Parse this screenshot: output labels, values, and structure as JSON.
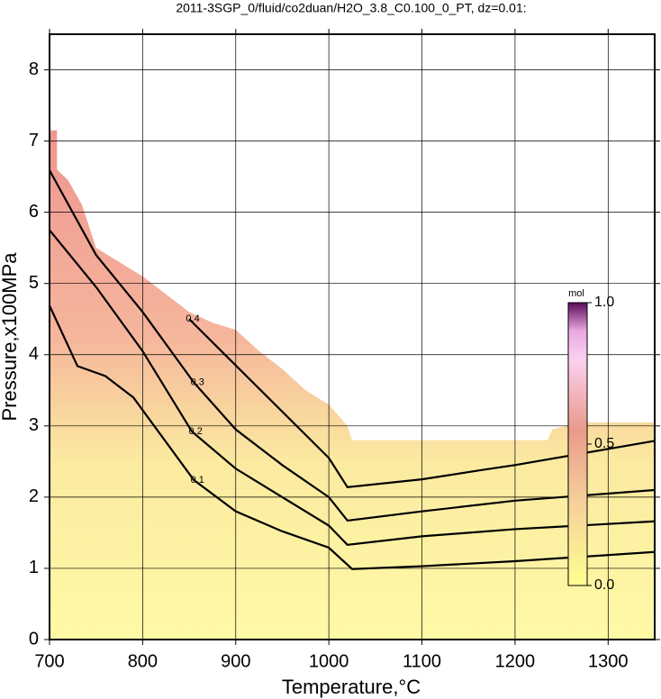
{
  "chart_data": {
    "type": "contour",
    "title": "2011-3SGP_0/fluid/co2duan/H2O_3.8_C0.100_0_PT, dz=0.01:",
    "xlabel": "Temperature,°C",
    "ylabel": "Pressure,x100MPa",
    "xlim": [
      700,
      1350
    ],
    "ylim": [
      0,
      8.5
    ],
    "xticks": [
      700,
      800,
      900,
      1000,
      1100,
      1200,
      1300
    ],
    "yticks": [
      0,
      1,
      2,
      3,
      4,
      5,
      6,
      7,
      8
    ],
    "grid": true,
    "boundary": {
      "x": [
        700,
        708,
        708,
        720,
        735,
        750,
        775,
        800,
        825,
        850,
        875,
        900,
        925,
        950,
        975,
        1000,
        1020,
        1025,
        1235,
        1240,
        1270,
        1350
      ],
      "y": [
        7.15,
        7.15,
        6.6,
        6.45,
        6.1,
        5.5,
        5.3,
        5.1,
        4.85,
        4.6,
        4.45,
        4.35,
        4.05,
        3.8,
        3.5,
        3.3,
        3.0,
        2.8,
        2.8,
        2.95,
        3.05,
        3.05
      ]
    },
    "contours": [
      {
        "level": 0.1,
        "x": [
          700,
          730,
          760,
          790,
          855,
          900,
          950,
          1000,
          1025,
          1100,
          1200,
          1350
        ],
        "y": [
          4.69,
          3.84,
          3.7,
          3.4,
          2.24,
          1.8,
          1.52,
          1.29,
          0.99,
          1.03,
          1.1,
          1.23
        ]
      },
      {
        "level": 0.2,
        "x": [
          700,
          750,
          800,
          853,
          900,
          950,
          1000,
          1020,
          1100,
          1200,
          1350
        ],
        "y": [
          5.75,
          4.95,
          4.05,
          2.92,
          2.4,
          2.0,
          1.6,
          1.33,
          1.45,
          1.55,
          1.66
        ]
      },
      {
        "level": 0.3,
        "x": [
          700,
          750,
          800,
          855,
          900,
          950,
          1000,
          1020,
          1100,
          1200,
          1350
        ],
        "y": [
          6.59,
          5.4,
          4.6,
          3.61,
          2.95,
          2.45,
          2.0,
          1.67,
          1.8,
          1.95,
          2.1
        ]
      },
      {
        "level": 0.4,
        "x": [
          850,
          900,
          950,
          1000,
          1020,
          1100,
          1164,
          1200,
          1350
        ],
        "y": [
          4.5,
          3.85,
          3.2,
          2.55,
          2.14,
          2.25,
          2.38,
          2.45,
          2.79
        ]
      }
    ],
    "colorbar": {
      "label": "mol",
      "ticks": [
        {
          "value": 0,
          "label": "0.0"
        },
        0.5,
        {
          "value": 1,
          "label": "1.0"
        }
      ]
    }
  }
}
